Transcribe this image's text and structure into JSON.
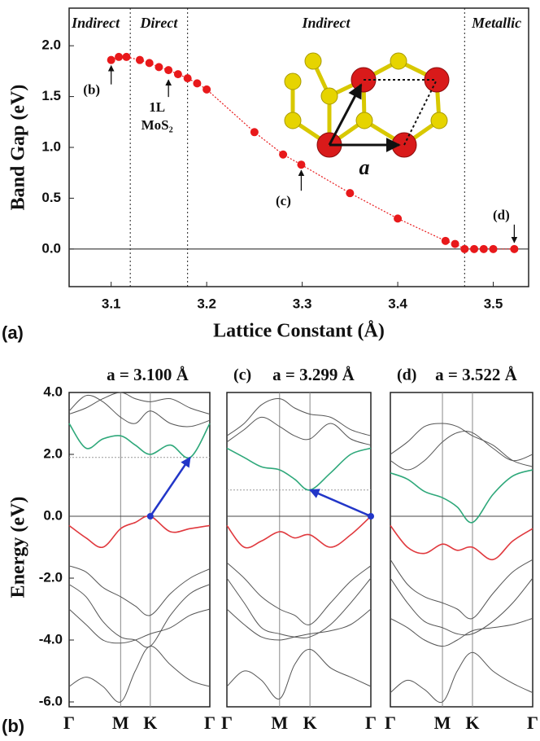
{
  "chart_data": [
    {
      "type": "line",
      "panel_label": "(a)",
      "xlabel": "Lattice Constant (Å)",
      "ylabel": "Band Gap (eV)",
      "x": [
        3.1,
        3.108,
        3.116,
        3.13,
        3.14,
        3.15,
        3.16,
        3.17,
        3.18,
        3.19,
        3.2,
        3.25,
        3.28,
        3.299,
        3.35,
        3.4,
        3.45,
        3.46,
        3.47,
        3.48,
        3.49,
        3.5,
        3.522
      ],
      "series": [
        {
          "color": "#e8191b",
          "values": [
            1.86,
            1.89,
            1.89,
            1.86,
            1.83,
            1.79,
            1.76,
            1.72,
            1.68,
            1.63,
            1.57,
            1.15,
            0.93,
            0.83,
            0.55,
            0.3,
            0.08,
            0.05,
            0,
            0,
            0,
            0,
            0
          ]
        }
      ],
      "markers": true,
      "xlim": [
        3.056,
        3.537
      ],
      "ylim": [
        -0.37,
        2.37
      ],
      "xticks": [
        3.1,
        3.2,
        3.3,
        3.4,
        3.5
      ],
      "yticks": [
        {
          "value": 0,
          "label": "0.0"
        },
        {
          "value": 0.5,
          "label": "0.5"
        },
        {
          "value": 1,
          "label": "1.0"
        },
        {
          "value": 1.5,
          "label": "1.5"
        },
        {
          "value": 2,
          "label": "2.0"
        }
      ],
      "boundaries": [
        3.12,
        3.18,
        3.47
      ],
      "region_labels": [
        "Indirect",
        "Direct",
        "Indirect",
        "Metallic"
      ],
      "annotations": [
        {
          "lines": [
            "(b)"
          ],
          "x": 3.1,
          "y": 1.86
        },
        {
          "lines": [
            "1L",
            "MoS₂"
          ],
          "x": 3.16,
          "y": 1.72
        },
        {
          "lines": [
            "(c)"
          ],
          "x": 3.299,
          "y": 0.83
        },
        {
          "lines": [
            "(d)"
          ],
          "x": 3.522,
          "y": 0
        }
      ],
      "inset_label": "a"
    },
    {
      "type": "line",
      "panel_label": "(b)",
      "title": "a = 3.100 Å",
      "ylabel": "Energy (eV)",
      "x": [
        0,
        0.12,
        0.24,
        0.366,
        0.47,
        0.577,
        0.72,
        0.86,
        1
      ],
      "xlim": [
        0,
        1
      ],
      "ylim": [
        -6,
        4
      ],
      "xticks": [
        {
          "value": 0,
          "label": "Γ"
        },
        {
          "value": 0.366,
          "label": "M"
        },
        {
          "value": 0.577,
          "label": "K"
        },
        {
          "value": 1,
          "label": "Γ"
        }
      ],
      "yticks": [
        {
          "value": 4,
          "label": "4.0"
        },
        {
          "value": 2,
          "label": "2.0"
        },
        {
          "value": 0,
          "label": "0.0"
        },
        {
          "value": -2,
          "label": "-2.0"
        },
        {
          "value": -4,
          "label": "-4.0"
        },
        {
          "value": -6,
          "label": "-6.0"
        }
      ],
      "series": [
        {
          "color": "#555555",
          "values": [
            3.3,
            3.5,
            3.8,
            4.0,
            3.8,
            3.7,
            3.8,
            3.5,
            3.3
          ]
        },
        {
          "color": "#555555",
          "values": [
            3.4,
            3.9,
            3.7,
            3.2,
            3.0,
            3.4,
            3.0,
            2.9,
            3.1
          ]
        },
        {
          "color": "#2ea87a",
          "values": [
            3.0,
            2.2,
            2.5,
            2.6,
            2.3,
            2.0,
            2.3,
            1.9,
            3.0
          ]
        },
        {
          "color": "#e0393e",
          "values": [
            -0.3,
            -0.7,
            -1.0,
            -0.4,
            -0.2,
            0.0,
            -0.5,
            -0.4,
            -0.3
          ]
        },
        {
          "color": "#555555",
          "values": [
            -1.6,
            -1.8,
            -2.3,
            -2.6,
            -2.9,
            -3.2,
            -2.5,
            -2.0,
            -1.7
          ]
        },
        {
          "color": "#555555",
          "values": [
            -2.2,
            -2.6,
            -3.4,
            -3.9,
            -4.0,
            -4.2,
            -3.2,
            -2.5,
            -2.2
          ]
        },
        {
          "color": "#555555",
          "values": [
            -3.0,
            -3.5,
            -4.0,
            -4.1,
            -4.0,
            -3.8,
            -3.6,
            -3.2,
            -3.0
          ]
        },
        {
          "color": "#555555",
          "values": [
            -5.5,
            -5.2,
            -5.5,
            -6.0,
            -5.0,
            -4.2,
            -4.8,
            -5.3,
            -5.5
          ]
        }
      ],
      "cbm": 1.9,
      "transition": {
        "x": [
          0.577,
          0.86
        ],
        "y": [
          0.0,
          1.9
        ]
      }
    },
    {
      "type": "line",
      "title_prefix": "(c)",
      "title": "a = 3.299 Å",
      "x": [
        0,
        0.12,
        0.24,
        0.366,
        0.47,
        0.577,
        0.72,
        0.86,
        1
      ],
      "xlim": [
        0,
        1
      ],
      "ylim": [
        -6,
        4
      ],
      "xticks": [
        {
          "value": 0,
          "label": "Γ"
        },
        {
          "value": 0.366,
          "label": "M"
        },
        {
          "value": 0.577,
          "label": "K"
        },
        {
          "value": 1,
          "label": "Γ"
        }
      ],
      "series": [
        {
          "color": "#555555",
          "values": [
            2.6,
            3.0,
            3.6,
            3.8,
            3.5,
            3.3,
            3.2,
            2.8,
            2.6
          ]
        },
        {
          "color": "#555555",
          "values": [
            2.4,
            2.8,
            3.2,
            2.9,
            2.6,
            2.5,
            3.0,
            2.5,
            2.3
          ]
        },
        {
          "color": "#2ea87a",
          "values": [
            2.2,
            1.9,
            1.6,
            1.5,
            1.2,
            0.85,
            1.4,
            2.0,
            2.2
          ]
        },
        {
          "color": "#e0393e",
          "values": [
            -0.3,
            -1.0,
            -0.8,
            -0.5,
            -0.7,
            -0.6,
            -1.0,
            -0.6,
            0.0
          ]
        },
        {
          "color": "#555555",
          "values": [
            -1.5,
            -2.0,
            -2.6,
            -3.0,
            -3.2,
            -3.5,
            -2.8,
            -2.1,
            -1.6
          ]
        },
        {
          "color": "#555555",
          "values": [
            -2.0,
            -2.8,
            -3.6,
            -3.8,
            -3.9,
            -3.9,
            -3.5,
            -2.8,
            -2.0
          ]
        },
        {
          "color": "#555555",
          "values": [
            -3.0,
            -3.5,
            -3.9,
            -4.0,
            -3.9,
            -3.8,
            -3.7,
            -3.5,
            -3.0
          ]
        },
        {
          "color": "#555555",
          "values": [
            -5.5,
            -5.0,
            -5.3,
            -5.9,
            -4.8,
            -4.3,
            -4.9,
            -5.2,
            -5.5
          ]
        }
      ],
      "cbm": 0.85,
      "transition": {
        "x": [
          1,
          0.577
        ],
        "y": [
          0.0,
          0.85
        ]
      }
    },
    {
      "type": "line",
      "title_prefix": "(d)",
      "title": "a = 3.522 Å",
      "x": [
        0,
        0.12,
        0.24,
        0.366,
        0.47,
        0.577,
        0.72,
        0.86,
        1
      ],
      "xlim": [
        0,
        1
      ],
      "ylim": [
        -6,
        4
      ],
      "xticks": [
        {
          "value": 0,
          "label": "Γ"
        },
        {
          "value": 0.366,
          "label": "M"
        },
        {
          "value": 0.577,
          "label": "K"
        },
        {
          "value": 1,
          "label": "Γ"
        }
      ],
      "series": [
        {
          "color": "#555555",
          "values": [
            2.0,
            2.4,
            2.9,
            3.0,
            2.9,
            2.6,
            2.3,
            1.8,
            1.6
          ]
        },
        {
          "color": "#555555",
          "values": [
            1.8,
            1.5,
            1.8,
            2.4,
            2.7,
            2.7,
            2.2,
            1.8,
            2.0
          ]
        },
        {
          "color": "#2ea87a",
          "values": [
            1.4,
            1.2,
            0.8,
            0.6,
            0.3,
            -0.2,
            0.7,
            1.3,
            1.5
          ]
        },
        {
          "color": "#e0393e",
          "values": [
            -0.3,
            -1.0,
            -1.2,
            -0.9,
            -1.1,
            -1.0,
            -1.4,
            -0.8,
            -0.4
          ]
        },
        {
          "color": "#555555",
          "values": [
            -1.4,
            -2.2,
            -2.6,
            -2.8,
            -3.0,
            -3.3,
            -2.5,
            -1.8,
            -1.4
          ]
        },
        {
          "color": "#555555",
          "values": [
            -2.0,
            -2.8,
            -3.4,
            -3.6,
            -3.8,
            -3.8,
            -3.4,
            -2.8,
            -2.0
          ]
        },
        {
          "color": "#555555",
          "values": [
            -3.3,
            -3.6,
            -4.0,
            -4.2,
            -4.0,
            -3.7,
            -3.6,
            -3.5,
            -3.3
          ]
        },
        {
          "color": "#555555",
          "values": [
            -5.7,
            -5.3,
            -5.6,
            -6.0,
            -5.0,
            -4.4,
            -5.0,
            -5.4,
            -5.7
          ]
        }
      ]
    }
  ]
}
